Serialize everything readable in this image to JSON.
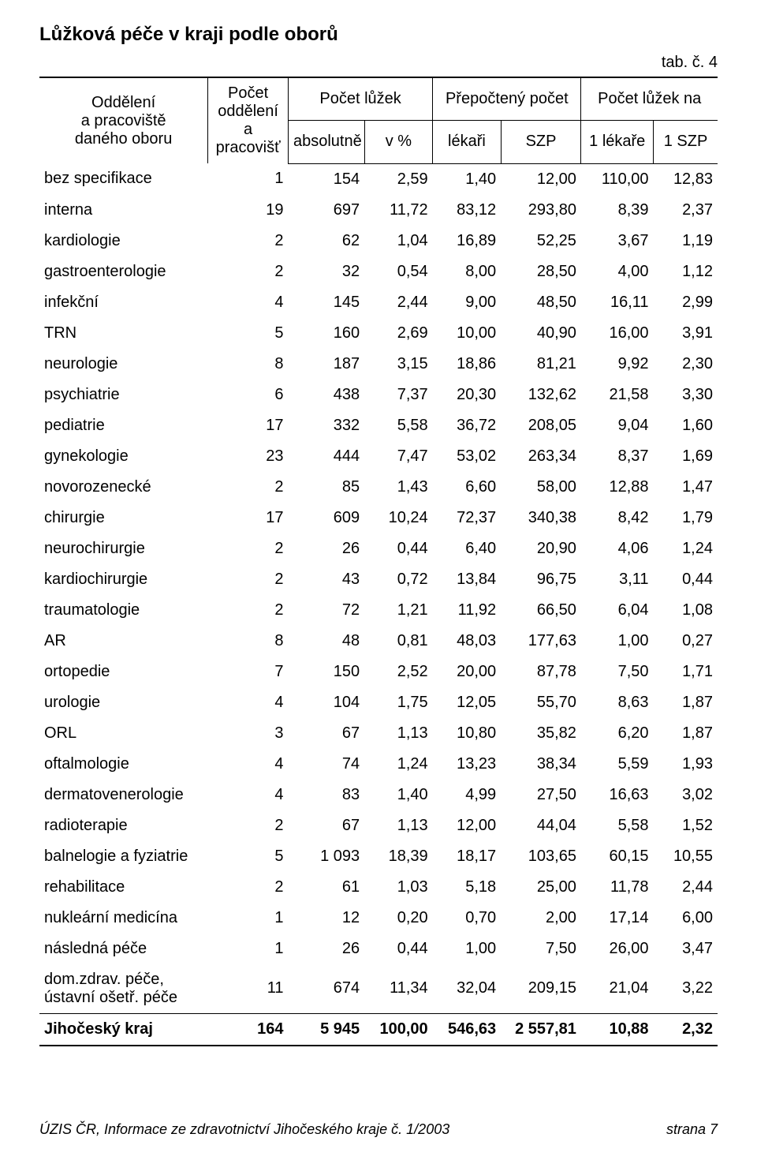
{
  "title": "Lůžková péče v kraji podle oborů",
  "tab_label": "tab. č. 4",
  "header": {
    "col0_line1": "Oddělení",
    "col0_line2": "a pracoviště",
    "col0_line3": "daného oboru",
    "col1_line1": "Počet",
    "col1_line2": "oddělení",
    "col1_line3": "a pracovišť",
    "group_beds": "Počet lůžek",
    "group_recalc": "Přepočtený počet",
    "group_per": "Počet lůžek na",
    "sub_abs": "absolutně",
    "sub_pct": "v %",
    "sub_lekari": "lékaři",
    "sub_szp": "SZP",
    "sub_1lekare": "1 lékaře",
    "sub_1szp": "1 SZP"
  },
  "rows": [
    {
      "name": "bez specifikace",
      "dept": "1",
      "abs": "154",
      "pct": "2,59",
      "lek": "1,40",
      "szp": "12,00",
      "per_l": "110,00",
      "per_s": "12,83"
    },
    {
      "name": "interna",
      "dept": "19",
      "abs": "697",
      "pct": "11,72",
      "lek": "83,12",
      "szp": "293,80",
      "per_l": "8,39",
      "per_s": "2,37"
    },
    {
      "name": "kardiologie",
      "dept": "2",
      "abs": "62",
      "pct": "1,04",
      "lek": "16,89",
      "szp": "52,25",
      "per_l": "3,67",
      "per_s": "1,19"
    },
    {
      "name": "gastroenterologie",
      "dept": "2",
      "abs": "32",
      "pct": "0,54",
      "lek": "8,00",
      "szp": "28,50",
      "per_l": "4,00",
      "per_s": "1,12"
    },
    {
      "name": "infekční",
      "dept": "4",
      "abs": "145",
      "pct": "2,44",
      "lek": "9,00",
      "szp": "48,50",
      "per_l": "16,11",
      "per_s": "2,99"
    },
    {
      "name": "TRN",
      "dept": "5",
      "abs": "160",
      "pct": "2,69",
      "lek": "10,00",
      "szp": "40,90",
      "per_l": "16,00",
      "per_s": "3,91"
    },
    {
      "name": "neurologie",
      "dept": "8",
      "abs": "187",
      "pct": "3,15",
      "lek": "18,86",
      "szp": "81,21",
      "per_l": "9,92",
      "per_s": "2,30"
    },
    {
      "name": "psychiatrie",
      "dept": "6",
      "abs": "438",
      "pct": "7,37",
      "lek": "20,30",
      "szp": "132,62",
      "per_l": "21,58",
      "per_s": "3,30"
    },
    {
      "name": "pediatrie",
      "dept": "17",
      "abs": "332",
      "pct": "5,58",
      "lek": "36,72",
      "szp": "208,05",
      "per_l": "9,04",
      "per_s": "1,60"
    },
    {
      "name": "gynekologie",
      "dept": "23",
      "abs": "444",
      "pct": "7,47",
      "lek": "53,02",
      "szp": "263,34",
      "per_l": "8,37",
      "per_s": "1,69"
    },
    {
      "name": "novorozenecké",
      "dept": "2",
      "abs": "85",
      "pct": "1,43",
      "lek": "6,60",
      "szp": "58,00",
      "per_l": "12,88",
      "per_s": "1,47"
    },
    {
      "name": "chirurgie",
      "dept": "17",
      "abs": "609",
      "pct": "10,24",
      "lek": "72,37",
      "szp": "340,38",
      "per_l": "8,42",
      "per_s": "1,79"
    },
    {
      "name": "neurochirurgie",
      "dept": "2",
      "abs": "26",
      "pct": "0,44",
      "lek": "6,40",
      "szp": "20,90",
      "per_l": "4,06",
      "per_s": "1,24"
    },
    {
      "name": "kardiochirurgie",
      "dept": "2",
      "abs": "43",
      "pct": "0,72",
      "lek": "13,84",
      "szp": "96,75",
      "per_l": "3,11",
      "per_s": "0,44"
    },
    {
      "name": "traumatologie",
      "dept": "2",
      "abs": "72",
      "pct": "1,21",
      "lek": "11,92",
      "szp": "66,50",
      "per_l": "6,04",
      "per_s": "1,08"
    },
    {
      "name": "AR",
      "dept": "8",
      "abs": "48",
      "pct": "0,81",
      "lek": "48,03",
      "szp": "177,63",
      "per_l": "1,00",
      "per_s": "0,27"
    },
    {
      "name": "ortopedie",
      "dept": "7",
      "abs": "150",
      "pct": "2,52",
      "lek": "20,00",
      "szp": "87,78",
      "per_l": "7,50",
      "per_s": "1,71"
    },
    {
      "name": "urologie",
      "dept": "4",
      "abs": "104",
      "pct": "1,75",
      "lek": "12,05",
      "szp": "55,70",
      "per_l": "8,63",
      "per_s": "1,87"
    },
    {
      "name": "ORL",
      "dept": "3",
      "abs": "67",
      "pct": "1,13",
      "lek": "10,80",
      "szp": "35,82",
      "per_l": "6,20",
      "per_s": "1,87"
    },
    {
      "name": "oftalmologie",
      "dept": "4",
      "abs": "74",
      "pct": "1,24",
      "lek": "13,23",
      "szp": "38,34",
      "per_l": "5,59",
      "per_s": "1,93"
    },
    {
      "name": "dermatovenerologie",
      "dept": "4",
      "abs": "83",
      "pct": "1,40",
      "lek": "4,99",
      "szp": "27,50",
      "per_l": "16,63",
      "per_s": "3,02"
    },
    {
      "name": "radioterapie",
      "dept": "2",
      "abs": "67",
      "pct": "1,13",
      "lek": "12,00",
      "szp": "44,04",
      "per_l": "5,58",
      "per_s": "1,52"
    },
    {
      "name": "balnelogie a fyziatrie",
      "dept": "5",
      "abs": "1 093",
      "pct": "18,39",
      "lek": "18,17",
      "szp": "103,65",
      "per_l": "60,15",
      "per_s": "10,55"
    },
    {
      "name": "rehabilitace",
      "dept": "2",
      "abs": "61",
      "pct": "1,03",
      "lek": "5,18",
      "szp": "25,00",
      "per_l": "11,78",
      "per_s": "2,44"
    },
    {
      "name": "nukleární medicína",
      "dept": "1",
      "abs": "12",
      "pct": "0,20",
      "lek": "0,70",
      "szp": "2,00",
      "per_l": "17,14",
      "per_s": "6,00"
    },
    {
      "name": "následná péče",
      "dept": "1",
      "abs": "26",
      "pct": "0,44",
      "lek": "1,00",
      "szp": "7,50",
      "per_l": "26,00",
      "per_s": "3,47"
    },
    {
      "name": "dom.zdrav. péče, ústavní ošetř. péče",
      "dept": "11",
      "abs": "674",
      "pct": "11,34",
      "lek": "32,04",
      "szp": "209,15",
      "per_l": "21,04",
      "per_s": "3,22"
    }
  ],
  "total": {
    "name": "Jihočeský kraj",
    "dept": "164",
    "abs": "5 945",
    "pct": "100,00",
    "lek": "546,63",
    "szp": "2 557,81",
    "per_l": "10,88",
    "per_s": "2,32"
  },
  "footer": {
    "source": "ÚZIS ČR, Informace ze zdravotnictví Jihočeského kraje č. 1/2003",
    "page": "strana 7"
  },
  "style": {
    "font_family": "Arial",
    "base_fontsize_pt": 15,
    "title_fontsize_pt": 18,
    "text_color": "#000000",
    "background_color": "#ffffff",
    "border_color": "#000000"
  }
}
